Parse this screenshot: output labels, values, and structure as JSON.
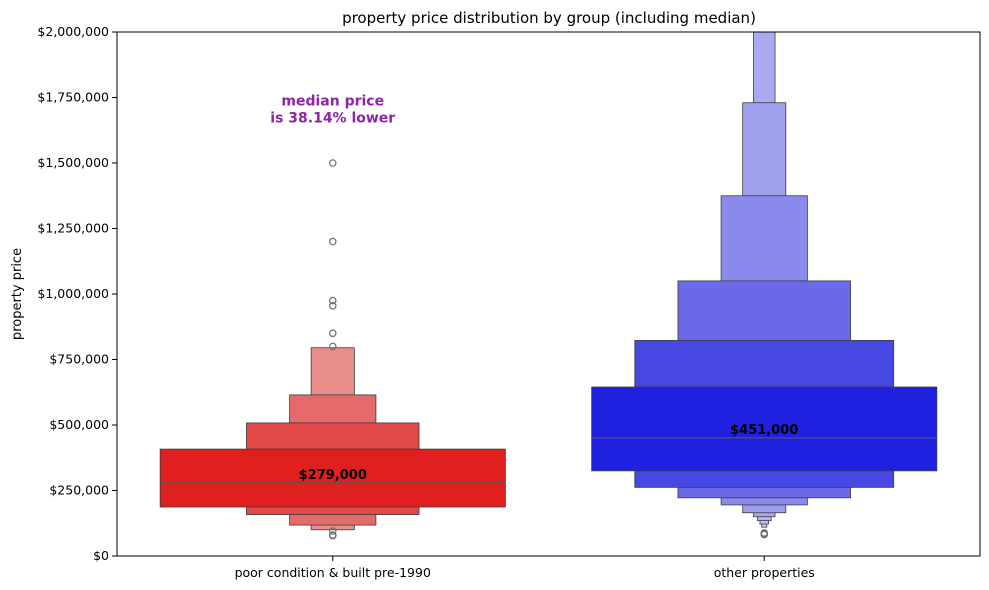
{
  "chart_data": {
    "type": "boxen",
    "title": "property price distribution by group (including median)",
    "xlabel": "",
    "ylabel": "property price",
    "ylim": [
      0,
      2000000
    ],
    "yticks": [
      0,
      250000,
      500000,
      750000,
      1000000,
      1250000,
      1500000,
      1750000,
      2000000
    ],
    "ytick_labels": [
      "$0",
      "$250,000",
      "$500,000",
      "$750,000",
      "$1,000,000",
      "$1,250,000",
      "$1,500,000",
      "$1,750,000",
      "$2,000,000"
    ],
    "grid": false,
    "categories": [
      "poor condition & built pre-1990",
      "other properties"
    ],
    "series": [
      {
        "category": "poor condition & built pre-1990",
        "base_color": "#e41f1f",
        "median": 279000,
        "median_label": "$279,000",
        "levels": [
          {
            "lo": 187000,
            "hi": 408000,
            "width": 1.0,
            "color": "#e01f1f"
          },
          {
            "lo": 158000,
            "hi": 508000,
            "width": 0.5,
            "color": "#e24848"
          },
          {
            "lo": 118000,
            "hi": 615000,
            "width": 0.25,
            "color": "#e56a6a"
          },
          {
            "lo": 100000,
            "hi": 795000,
            "width": 0.125,
            "color": "#e98c8c"
          }
        ],
        "outliers": [
          1500000,
          1200000,
          975000,
          955000,
          850000,
          800000,
          95000,
          80000,
          78000
        ]
      },
      {
        "category": "other properties",
        "base_color": "#2020e0",
        "median": 451000,
        "median_label": "$451,000",
        "levels": [
          {
            "lo": 325000,
            "hi": 645000,
            "width": 1.0,
            "color": "#2020e0"
          },
          {
            "lo": 262000,
            "hi": 823000,
            "width": 0.75,
            "color": "#4747e3"
          },
          {
            "lo": 222000,
            "hi": 1050000,
            "width": 0.5,
            "color": "#6a6ae8"
          },
          {
            "lo": 195000,
            "hi": 1375000,
            "width": 0.25,
            "color": "#8a8aec"
          },
          {
            "lo": 165000,
            "hi": 1730000,
            "width": 0.125,
            "color": "#9f9fee"
          },
          {
            "lo": 150000,
            "hi": 2000000,
            "width": 0.0625,
            "color": "#aaaaf0"
          },
          {
            "lo": 135000,
            "hi": 2000000,
            "width": 0.04,
            "color": "#b5b5f2"
          },
          {
            "lo": 122000,
            "hi": 2000000,
            "width": 0.025,
            "color": "#c0c0f4"
          },
          {
            "lo": 110000,
            "hi": 2000000,
            "width": 0.015,
            "color": "#c8c8f5"
          }
        ],
        "outliers": [
          88000,
          85000,
          82000
        ]
      }
    ],
    "annotation": {
      "lines": [
        "median price",
        "is 38.14% lower"
      ],
      "color": "#8e24aa",
      "x_category": "poor condition & built pre-1990",
      "y": 1720000
    }
  }
}
